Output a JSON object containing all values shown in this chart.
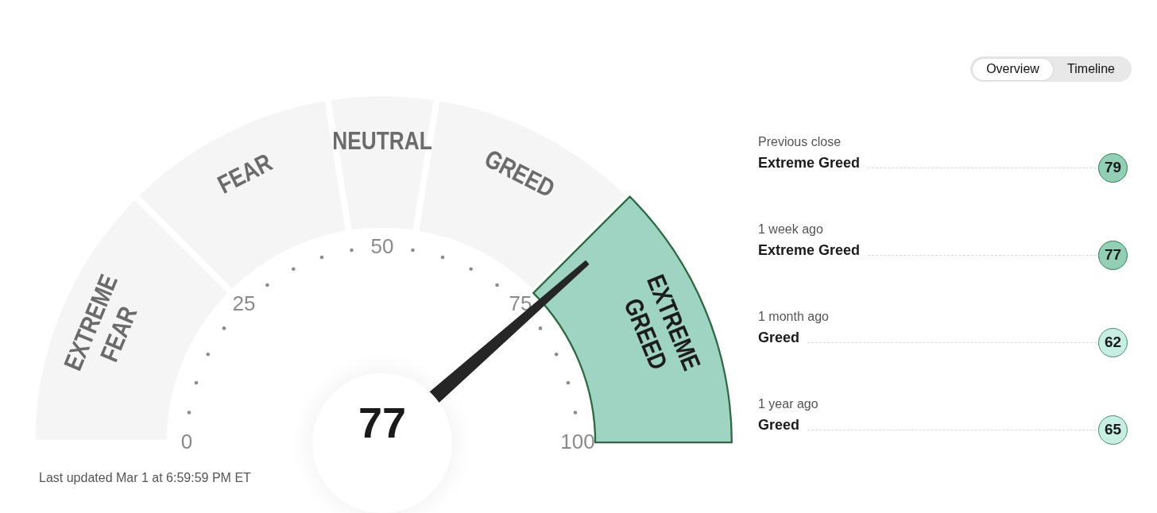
{
  "chart_data": [
    {
      "type": "donut",
      "categories": [
        "EXTREME FEAR",
        "FEAR",
        "NEUTRAL",
        "GREED",
        "EXTREME GREED"
      ],
      "values": [
        25,
        20,
        10,
        20,
        25
      ],
      "colors": [
        "#f5f5f5",
        "#f5f5f5",
        "#f5f5f5",
        "#f5f5f5",
        "#9fd4c3"
      ],
      "needle": "EXTREME GREED",
      "annotations": [
        "77",
        "0",
        "25",
        "50",
        "75",
        "100",
        "Last updated Mar 1 at 6:59:59 PM ET"
      ]
    },
    {
      "type": "other",
      "categories": [
        "Previous close",
        "1 week ago",
        "1 month ago",
        "1 year ago"
      ],
      "values": [
        79,
        77,
        62,
        65
      ],
      "colors": [
        "#93cfb7",
        "#93cfb7",
        "#c7eee3",
        "#c7eee3"
      ],
      "data_labels": true,
      "annotations": [
        "Extreme Greed",
        "Extreme Greed",
        "Greed",
        "Greed",
        "Overview",
        "Timeline"
      ]
    }
  ]
}
